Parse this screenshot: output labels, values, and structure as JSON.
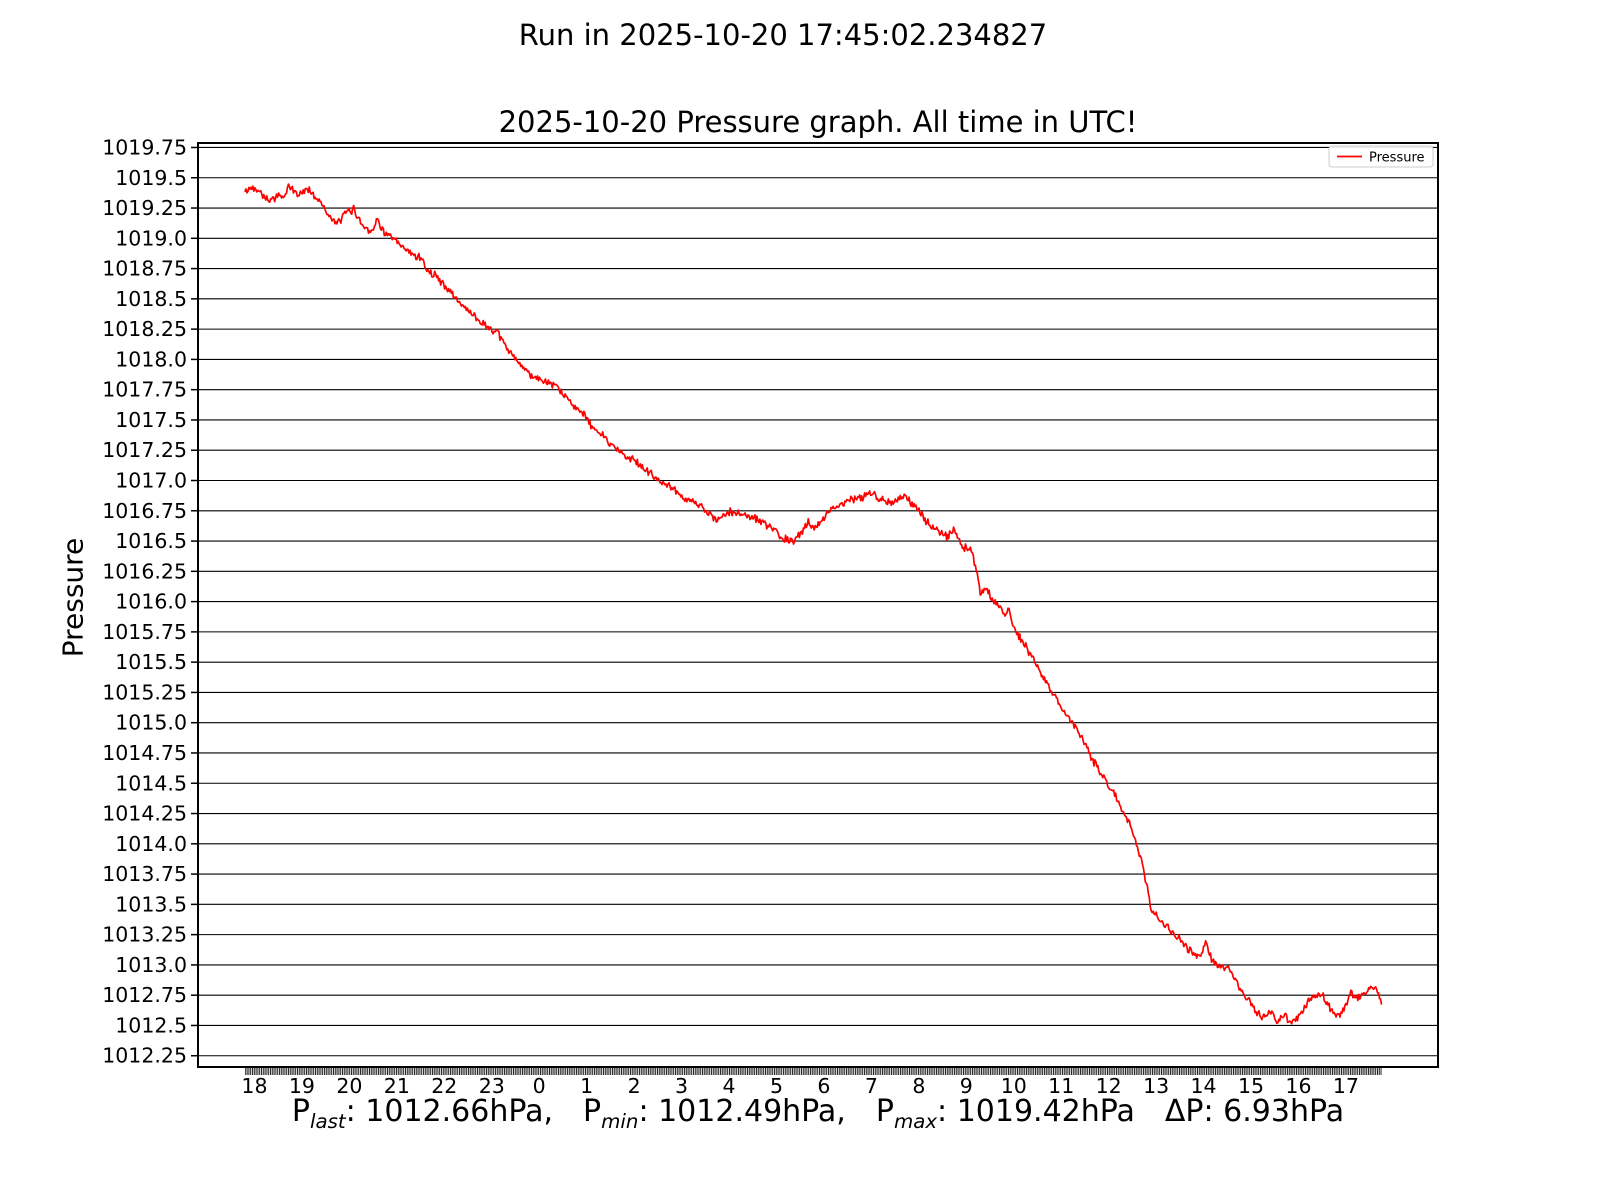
{
  "figure": {
    "suptitle": "Run in 2025-10-20 17:45:02.234827"
  },
  "chart_data": {
    "type": "line",
    "title": "2025-10-20 Pressure graph. All time in UTC!",
    "ylabel": "Pressure",
    "grid": true,
    "legend": {
      "position": "upper right",
      "entries": [
        {
          "label": "Pressure",
          "color": "#ff0000"
        }
      ]
    },
    "x_axis": {
      "unit": "hour of day (UTC), starting 18:00",
      "tick_labels": [
        "18",
        "19",
        "20",
        "21",
        "22",
        "23",
        "0",
        "1",
        "2",
        "3",
        "4",
        "5",
        "6",
        "7",
        "8",
        "9",
        "10",
        "11",
        "12",
        "13",
        "14",
        "15",
        "16",
        "17"
      ],
      "xlim_hours_from_start": [
        -1.19,
        24.94
      ],
      "data_hours_from_start": [
        -0.2,
        23.75
      ]
    },
    "y_axis": {
      "tick_labels": [
        "1019.75",
        "1019.5",
        "1019.25",
        "1019.0",
        "1018.75",
        "1018.5",
        "1018.25",
        "1018.0",
        "1017.75",
        "1017.5",
        "1017.25",
        "1017.0",
        "1016.75",
        "1016.5",
        "1016.25",
        "1016.0",
        "1015.75",
        "1015.5",
        "1015.25",
        "1015.0",
        "1014.75",
        "1014.5",
        "1014.25",
        "1014.0",
        "1013.75",
        "1013.5",
        "1013.25",
        "1013.0",
        "1012.75",
        "1012.5",
        "1012.25"
      ],
      "ylim": [
        1012.157,
        1019.787
      ]
    },
    "series": [
      {
        "name": "Pressure",
        "color": "#ff0000",
        "waypoints_hours_from_18utc": [
          [
            -0.2,
            1019.38
          ],
          [
            -0.05,
            1019.42
          ],
          [
            0.1,
            1019.4
          ],
          [
            0.25,
            1019.33
          ],
          [
            0.35,
            1019.31
          ],
          [
            0.5,
            1019.36
          ],
          [
            0.6,
            1019.33
          ],
          [
            0.74,
            1019.43
          ],
          [
            0.9,
            1019.36
          ],
          [
            1.05,
            1019.39
          ],
          [
            1.15,
            1019.41
          ],
          [
            1.3,
            1019.33
          ],
          [
            1.45,
            1019.28
          ],
          [
            1.6,
            1019.16
          ],
          [
            1.75,
            1019.12
          ],
          [
            1.95,
            1019.22
          ],
          [
            2.1,
            1019.24
          ],
          [
            2.25,
            1019.12
          ],
          [
            2.45,
            1019.06
          ],
          [
            2.6,
            1019.15
          ],
          [
            2.75,
            1019.04
          ],
          [
            2.9,
            1019.0
          ],
          [
            3.05,
            1018.95
          ],
          [
            3.2,
            1018.9
          ],
          [
            3.35,
            1018.86
          ],
          [
            3.5,
            1018.85
          ],
          [
            3.65,
            1018.73
          ],
          [
            3.8,
            1018.7
          ],
          [
            3.95,
            1018.63
          ],
          [
            4.1,
            1018.57
          ],
          [
            4.25,
            1018.5
          ],
          [
            4.4,
            1018.44
          ],
          [
            4.55,
            1018.39
          ],
          [
            4.7,
            1018.33
          ],
          [
            4.85,
            1018.29
          ],
          [
            5.0,
            1018.24
          ],
          [
            5.15,
            1018.2
          ],
          [
            5.35,
            1018.08
          ],
          [
            5.5,
            1018.0
          ],
          [
            5.65,
            1017.93
          ],
          [
            5.8,
            1017.88
          ],
          [
            6.0,
            1017.84
          ],
          [
            6.15,
            1017.8
          ],
          [
            6.35,
            1017.78
          ],
          [
            6.55,
            1017.69
          ],
          [
            6.75,
            1017.62
          ],
          [
            6.95,
            1017.54
          ],
          [
            7.15,
            1017.42
          ],
          [
            7.35,
            1017.37
          ],
          [
            7.55,
            1017.29
          ],
          [
            7.85,
            1017.2
          ],
          [
            8.15,
            1017.12
          ],
          [
            8.45,
            1017.02
          ],
          [
            8.75,
            1016.95
          ],
          [
            9.0,
            1016.87
          ],
          [
            9.25,
            1016.82
          ],
          [
            9.5,
            1016.76
          ],
          [
            9.75,
            1016.66
          ],
          [
            10.0,
            1016.74
          ],
          [
            10.3,
            1016.72
          ],
          [
            10.6,
            1016.68
          ],
          [
            10.9,
            1016.6
          ],
          [
            11.15,
            1016.52
          ],
          [
            11.35,
            1016.49
          ],
          [
            11.5,
            1016.56
          ],
          [
            11.65,
            1016.66
          ],
          [
            11.8,
            1016.6
          ],
          [
            12.0,
            1016.7
          ],
          [
            12.2,
            1016.78
          ],
          [
            12.5,
            1016.83
          ],
          [
            12.8,
            1016.86
          ],
          [
            13.0,
            1016.9
          ],
          [
            13.2,
            1016.85
          ],
          [
            13.45,
            1016.82
          ],
          [
            13.7,
            1016.87
          ],
          [
            13.95,
            1016.77
          ],
          [
            14.2,
            1016.64
          ],
          [
            14.4,
            1016.59
          ],
          [
            14.6,
            1016.53
          ],
          [
            14.75,
            1016.61
          ],
          [
            14.9,
            1016.45
          ],
          [
            15.1,
            1016.44
          ],
          [
            15.22,
            1016.25
          ],
          [
            15.3,
            1016.06
          ],
          [
            15.42,
            1016.12
          ],
          [
            15.55,
            1016.0
          ],
          [
            15.7,
            1015.96
          ],
          [
            15.8,
            1015.9
          ],
          [
            15.9,
            1015.95
          ],
          [
            16.0,
            1015.78
          ],
          [
            16.2,
            1015.66
          ],
          [
            16.4,
            1015.53
          ],
          [
            16.6,
            1015.4
          ],
          [
            16.8,
            1015.26
          ],
          [
            17.0,
            1015.12
          ],
          [
            17.25,
            1014.99
          ],
          [
            17.45,
            1014.87
          ],
          [
            17.6,
            1014.74
          ],
          [
            17.8,
            1014.6
          ],
          [
            17.95,
            1014.52
          ],
          [
            18.1,
            1014.42
          ],
          [
            18.3,
            1014.28
          ],
          [
            18.5,
            1014.12
          ],
          [
            18.7,
            1013.85
          ],
          [
            18.9,
            1013.45
          ],
          [
            19.1,
            1013.37
          ],
          [
            19.4,
            1013.25
          ],
          [
            19.6,
            1013.16
          ],
          [
            19.8,
            1013.1
          ],
          [
            19.9,
            1013.06
          ],
          [
            20.05,
            1013.18
          ],
          [
            20.2,
            1013.02
          ],
          [
            20.35,
            1012.98
          ],
          [
            20.55,
            1012.96
          ],
          [
            20.75,
            1012.82
          ],
          [
            20.95,
            1012.72
          ],
          [
            21.1,
            1012.62
          ],
          [
            21.25,
            1012.56
          ],
          [
            21.4,
            1012.63
          ],
          [
            21.55,
            1012.52
          ],
          [
            21.7,
            1012.58
          ],
          [
            21.85,
            1012.51
          ],
          [
            21.95,
            1012.55
          ],
          [
            22.1,
            1012.63
          ],
          [
            22.3,
            1012.74
          ],
          [
            22.5,
            1012.76
          ],
          [
            22.65,
            1012.66
          ],
          [
            22.8,
            1012.56
          ],
          [
            22.95,
            1012.62
          ],
          [
            23.1,
            1012.77
          ],
          [
            23.25,
            1012.73
          ],
          [
            23.4,
            1012.78
          ],
          [
            23.55,
            1012.83
          ],
          [
            23.65,
            1012.79
          ],
          [
            23.72,
            1012.72
          ],
          [
            23.75,
            1012.66
          ]
        ]
      }
    ],
    "stats": {
      "p_last_hpa": 1012.66,
      "p_min_hpa": 1012.49,
      "p_max_hpa": 1019.42,
      "delta_p_hpa": 6.93
    },
    "stats_parts": [
      {
        "key": "p-last",
        "base": "P",
        "sub": "last",
        "rest": ": 1012.66hPa,"
      },
      {
        "key": "p-min",
        "base": "P",
        "sub": "min",
        "rest": ": 1012.49hPa,"
      },
      {
        "key": "p-max",
        "base": "P",
        "sub": "max",
        "rest": ": 1019.42hPa"
      },
      {
        "key": "delta-p",
        "base": "ΔP",
        "sub": "",
        "rest": ": 6.93hPa"
      }
    ]
  }
}
